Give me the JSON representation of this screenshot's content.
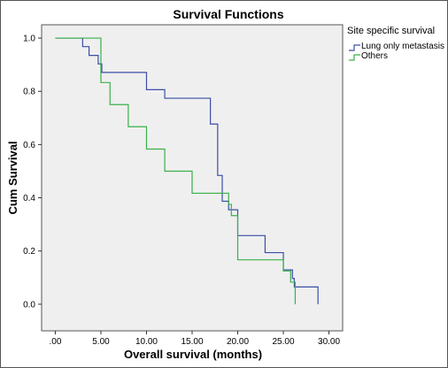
{
  "chart_data": {
    "type": "line",
    "title": "Survival Functions",
    "xlabel": "Overall survival (months)",
    "ylabel": "Cum Survival",
    "xlim": [
      -1.5,
      31.5
    ],
    "ylim": [
      -0.1,
      1.05
    ],
    "xticks": [
      0,
      5,
      10,
      15,
      20,
      25,
      30
    ],
    "xtick_labels": [
      ".00",
      "5.00",
      "10.00",
      "15.00",
      "20.00",
      "25.00",
      "30.00"
    ],
    "yticks": [
      0,
      0.2,
      0.4,
      0.6,
      0.8,
      1.0
    ],
    "ytick_labels": [
      "0.0",
      "0.2",
      "0.4",
      "0.6",
      "0.8",
      "1.0"
    ],
    "grid": false,
    "legend": {
      "title": "Site specific survival",
      "position": "right"
    },
    "series": [
      {
        "name": "Lung only metastasis",
        "color": "#3a4fa8",
        "step": true,
        "x": [
          0,
          3,
          3.7,
          4.7,
          5.1,
          10,
          12,
          17,
          17.8,
          18.3,
          19,
          20,
          23,
          25,
          26,
          26.2,
          27,
          28.8,
          28.8
        ],
        "y": [
          1.0,
          0.968,
          0.935,
          0.903,
          0.871,
          0.806,
          0.774,
          0.677,
          0.484,
          0.387,
          0.355,
          0.258,
          0.194,
          0.129,
          0.097,
          0.065,
          0.065,
          0.032,
          0.0
        ]
      },
      {
        "name": "Others",
        "color": "#3bb04a",
        "step": true,
        "x": [
          0,
          5,
          6,
          8,
          10,
          12,
          15,
          19,
          19.3,
          20,
          25,
          25.8,
          26.3,
          26.3
        ],
        "y": [
          1.0,
          0.833,
          0.75,
          0.667,
          0.583,
          0.5,
          0.417,
          0.375,
          0.333,
          0.167,
          0.125,
          0.083,
          0.083,
          0.0
        ]
      }
    ]
  }
}
